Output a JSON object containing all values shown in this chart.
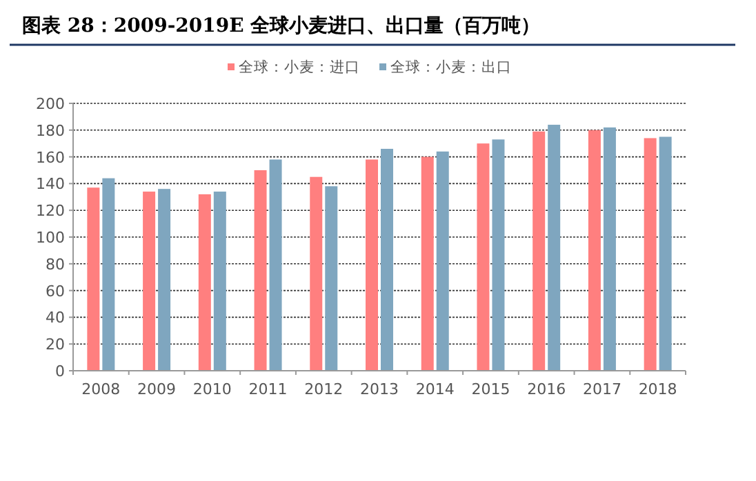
{
  "chart_data": {
    "type": "bar",
    "title": "图表 28：2009-2019E 全球小麦进口、出口量（百万吨）",
    "categories": [
      "2008",
      "2009",
      "2010",
      "2011",
      "2012",
      "2013",
      "2014",
      "2015",
      "2016",
      "2017",
      "2018"
    ],
    "series": [
      {
        "name": "全球：小麦：进口",
        "color": "#ff7f7f",
        "values": [
          137,
          134,
          132,
          150,
          145,
          158,
          160,
          170,
          179,
          180,
          174
        ]
      },
      {
        "name": "全球：小麦：出口",
        "color": "#7fa6bf",
        "values": [
          144,
          136,
          134,
          158,
          138,
          166,
          164,
          173,
          184,
          182,
          175
        ]
      }
    ],
    "ylim": [
      0,
      200
    ],
    "yticks": [
      0,
      20,
      40,
      60,
      80,
      100,
      120,
      140,
      160,
      180,
      200
    ],
    "grid": "y",
    "legend": "top"
  }
}
